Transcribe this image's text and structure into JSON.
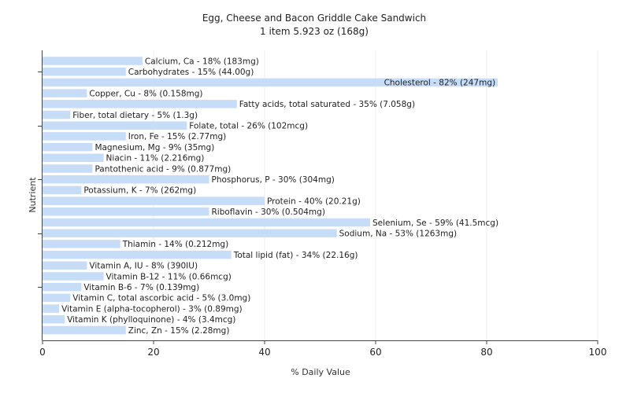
{
  "chart_data": {
    "type": "bar",
    "orientation": "horizontal",
    "title": "Egg, Cheese and Bacon Griddle Cake Sandwich",
    "subtitle": "1 item 5.923 oz (168g)",
    "xlabel": "% Daily Value",
    "ylabel": "Nutrient",
    "xlim": [
      0,
      100
    ],
    "xticks": [
      0,
      20,
      40,
      60,
      80,
      100
    ],
    "grid": true,
    "bar_color": "#c6dcf7",
    "categories": [
      "Calcium, Ca",
      "Carbohydrates",
      "Cholesterol",
      "Copper, Cu",
      "Fatty acids, total saturated",
      "Fiber, total dietary",
      "Folate, total",
      "Iron, Fe",
      "Magnesium, Mg",
      "Niacin",
      "Pantothenic acid",
      "Phosphorus, P",
      "Potassium, K",
      "Protein",
      "Riboflavin",
      "Selenium, Se",
      "Sodium, Na",
      "Thiamin",
      "Total lipid (fat)",
      "Vitamin A, IU",
      "Vitamin B-12",
      "Vitamin B-6",
      "Vitamin C, total ascorbic acid",
      "Vitamin E (alpha-tocopherol)",
      "Vitamin K (phylloquinone)",
      "Zinc, Zn"
    ],
    "values": [
      18,
      15,
      82,
      8,
      35,
      5,
      26,
      15,
      9,
      11,
      9,
      30,
      7,
      40,
      30,
      59,
      53,
      14,
      34,
      8,
      11,
      7,
      5,
      3,
      4,
      15
    ],
    "labels": [
      "Calcium, Ca - 18% (183mg)",
      "Carbohydrates - 15% (44.00g)",
      "Cholesterol - 82% (247mg)",
      "Copper, Cu - 8% (0.158mg)",
      "Fatty acids, total saturated - 35% (7.058g)",
      "Fiber, total dietary - 5% (1.3g)",
      "Folate, total - 26% (102mcg)",
      "Iron, Fe - 15% (2.77mg)",
      "Magnesium, Mg - 9% (35mg)",
      "Niacin - 11% (2.216mg)",
      "Pantothenic acid - 9% (0.877mg)",
      "Phosphorus, P - 30% (304mg)",
      "Potassium, K - 7% (262mg)",
      "Protein - 40% (20.21g)",
      "Riboflavin - 30% (0.504mg)",
      "Selenium, Se - 59% (41.5mcg)",
      "Sodium, Na - 53% (1263mg)",
      "Thiamin - 14% (0.212mg)",
      "Total lipid (fat) - 34% (22.16g)",
      "Vitamin A, IU - 8% (390IU)",
      "Vitamin B-12 - 11% (0.66mcg)",
      "Vitamin B-6 - 7% (0.139mg)",
      "Vitamin C, total ascorbic acid - 5% (3.0mg)",
      "Vitamin E (alpha-tocopherol) - 3% (0.89mg)",
      "Vitamin K (phylloquinone) - 4% (3.4mcg)",
      "Zinc, Zn - 15% (2.28mg)"
    ]
  }
}
